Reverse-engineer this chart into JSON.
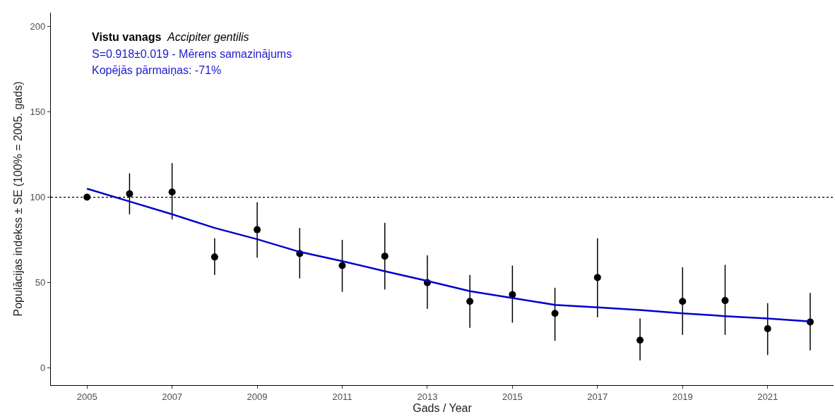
{
  "chart_data": {
    "type": "scatter",
    "xlabel": "Gads / Year",
    "ylabel": "Populācijas indekss ± SE (100% = 2005. gads)",
    "annotations": [
      "Vistu vanags",
      "Accipiter gentilis",
      "S=0.918±0.019 - Mērens samazinājums",
      "Kopējās pārmaiņas: -71%"
    ],
    "x": [
      2005,
      2006,
      2007,
      2008,
      2009,
      2010,
      2011,
      2012,
      2013,
      2014,
      2015,
      2016,
      2017,
      2018,
      2019,
      2020,
      2021,
      2022
    ],
    "series": [
      {
        "color": "#000000",
        "marker": "circle",
        "values": [
          100,
          102,
          103,
          65,
          81,
          67,
          60,
          65.5,
          50,
          39,
          43,
          32,
          53,
          16.3,
          39,
          39.5,
          23,
          27
        ],
        "errors": [
          null,
          [
            90,
            114
          ],
          [
            87,
            120
          ],
          [
            54.5,
            76
          ],
          [
            64.6,
            97
          ],
          [
            52.5,
            82
          ],
          [
            44.6,
            75
          ],
          [
            46,
            85
          ],
          [
            34.7,
            66
          ],
          [
            23.5,
            54.5
          ],
          [
            26.5,
            60
          ],
          [
            16,
            47
          ],
          [
            29.7,
            76
          ],
          [
            4.5,
            29
          ],
          [
            19.4,
            59
          ],
          [
            19.4,
            60.4
          ],
          [
            7.6,
            38
          ],
          [
            10.3,
            44
          ]
        ]
      },
      {
        "type": "line",
        "color": "#0000cc",
        "marker": "none",
        "values": [
          105,
          97.5,
          90,
          82,
          75.4,
          68,
          62.6,
          56.7,
          51,
          45,
          41,
          37,
          35.5,
          34,
          32,
          30.4,
          29,
          27.3
        ]
      }
    ],
    "xlim": [
      2004.15,
      2022.55
    ],
    "xticks": [
      2005,
      2007,
      2009,
      2011,
      2013,
      2015,
      2017,
      2019,
      2021
    ],
    "ylim": [
      -10,
      208
    ],
    "yticks": [
      0,
      50,
      100,
      150,
      200
    ],
    "ref_lines": [
      {
        "axis": "y",
        "value": 100,
        "line_style": "dotted",
        "color": "#000000"
      }
    ]
  }
}
